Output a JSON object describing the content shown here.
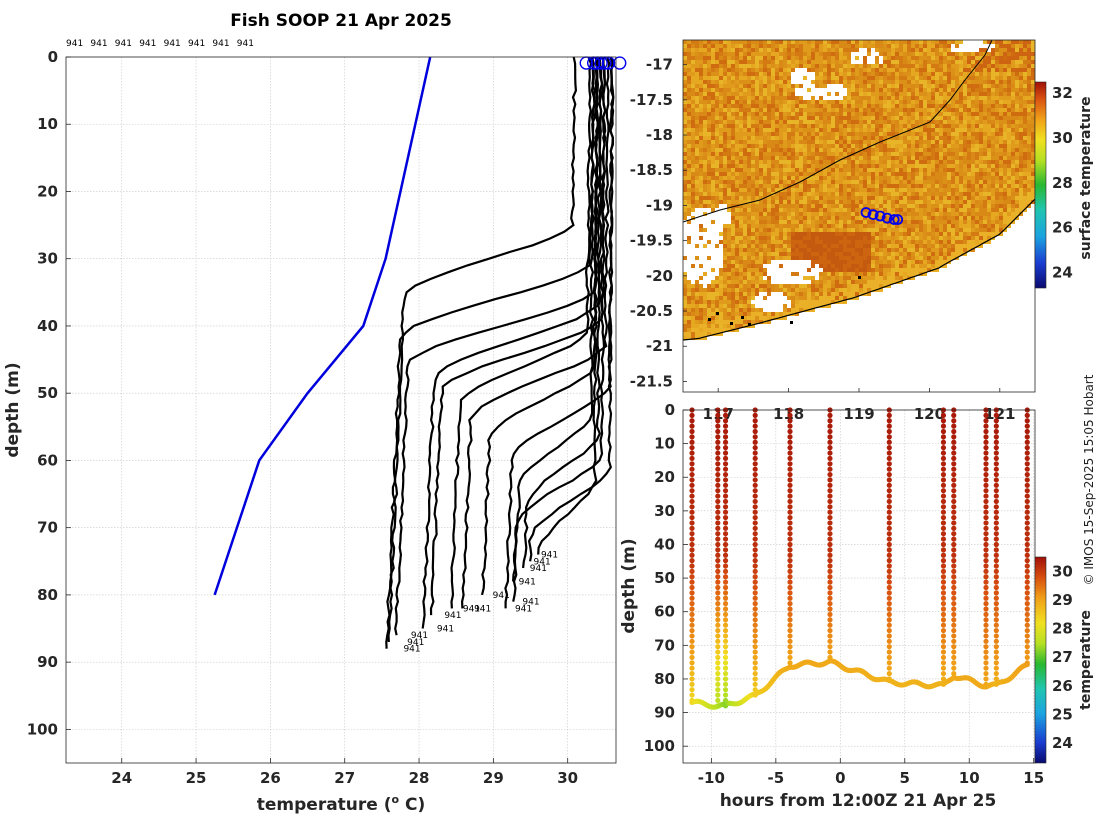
{
  "chart_data": [
    {
      "type": "line",
      "title": "Fish SOOP 21 Apr 2025",
      "xlabel": "temperature (° C)",
      "xlabel_main": "temperature (",
      "xlabel_sup": "o",
      "xlabel_end": " C)",
      "ylabel": "depth (m)",
      "xlim": [
        23.25,
        30.65
      ],
      "ylim": [
        105,
        0
      ],
      "xticks": [
        "24",
        "25",
        "26",
        "27",
        "28",
        "29",
        "30"
      ],
      "yticks": [
        "0",
        "10",
        "20",
        "30",
        "40",
        "50",
        "60",
        "70",
        "80",
        "90",
        "100"
      ],
      "header_labels": [
        "941",
        "941",
        "941",
        "941",
        "941",
        "941",
        "941",
        "941"
      ],
      "profile_tag": "941",
      "climatology": {
        "name": "climatology",
        "color": "#0000dd",
        "temperature": [
          28.15,
          27.95,
          27.75,
          27.55,
          27.25,
          26.5,
          25.85,
          25.55,
          25.25
        ],
        "depth": [
          0,
          10,
          20,
          30,
          40,
          50,
          60,
          70,
          80
        ]
      },
      "profiles": [
        {
          "surface": 30.1,
          "mld": 24,
          "bottom_temp": 27.8,
          "max_depth": 87
        },
        {
          "surface": 30.35,
          "mld": 30,
          "bottom_temp": 27.75,
          "max_depth": 88
        },
        {
          "surface": 30.4,
          "mld": 34,
          "bottom_temp": 27.85,
          "max_depth": 86
        },
        {
          "surface": 30.45,
          "mld": 36,
          "bottom_temp": 28.2,
          "max_depth": 85
        },
        {
          "surface": 30.5,
          "mld": 38,
          "bottom_temp": 28.3,
          "max_depth": 83
        },
        {
          "surface": 30.3,
          "mld": 40,
          "bottom_temp": 28.55,
          "max_depth": 82
        },
        {
          "surface": 30.55,
          "mld": 42,
          "bottom_temp": 28.7,
          "max_depth": 82
        },
        {
          "surface": 30.4,
          "mld": 45,
          "bottom_temp": 28.95,
          "max_depth": 80
        },
        {
          "surface": 30.6,
          "mld": 48,
          "bottom_temp": 29.25,
          "max_depth": 82
        },
        {
          "surface": 30.35,
          "mld": 52,
          "bottom_temp": 29.35,
          "max_depth": 81
        },
        {
          "surface": 30.45,
          "mld": 55,
          "bottom_temp": 29.45,
          "max_depth": 76
        },
        {
          "surface": 30.5,
          "mld": 58,
          "bottom_temp": 29.3,
          "max_depth": 78
        },
        {
          "surface": 30.6,
          "mld": 60,
          "bottom_temp": 29.5,
          "max_depth": 75
        },
        {
          "surface": 30.4,
          "mld": 62,
          "bottom_temp": 29.6,
          "max_depth": 74
        }
      ],
      "surface_markers": [
        30.25,
        30.35,
        30.4,
        30.45,
        30.5,
        30.55,
        30.7
      ]
    },
    {
      "type": "heatmap",
      "name": "surface temperature map",
      "xticks": [
        "117",
        "118",
        "119",
        "120",
        "121"
      ],
      "yticks": [
        "-17",
        "-17.5",
        "-18",
        "-18.5",
        "-19",
        "-19.5",
        "-20",
        "-20.5",
        "-21",
        "-21.5"
      ],
      "xlim": [
        116.5,
        121.5
      ],
      "ylim": [
        -21.65,
        -16.65
      ],
      "colorbar_label": "surface temperature",
      "colorbar_ticks": [
        "24",
        "26",
        "28",
        "30",
        "32"
      ],
      "colorbar_range": [
        23.3,
        32.5
      ],
      "track_points": [
        {
          "lon": 119.1,
          "lat": -19.1
        },
        {
          "lon": 119.2,
          "lat": -19.13
        },
        {
          "lon": 119.3,
          "lat": -19.15
        },
        {
          "lon": 119.4,
          "lat": -19.18
        },
        {
          "lon": 119.5,
          "lat": -19.2
        },
        {
          "lon": 119.55,
          "lat": -19.2
        }
      ]
    },
    {
      "type": "scatter",
      "name": "temperature section",
      "xlabel": "hours from 12:00Z 21 Apr 25",
      "ylabel": "depth (m)",
      "xticks": [
        "-10",
        "-5",
        "0",
        "5",
        "10",
        "15"
      ],
      "yticks": [
        "0",
        "10",
        "20",
        "30",
        "40",
        "50",
        "60",
        "70",
        "80",
        "90",
        "100"
      ],
      "xlim": [
        -12.2,
        15.1
      ],
      "ylim": [
        105,
        0
      ],
      "colorbar_label": "temperature",
      "colorbar_ticks": [
        "24",
        "25",
        "26",
        "27",
        "28",
        "29",
        "30"
      ],
      "colorbar_range": [
        23.3,
        30.5
      ],
      "casts": [
        {
          "hour": -11.5,
          "bottom": 87,
          "bottom_temp": 28.4
        },
        {
          "hour": -9.5,
          "bottom": 88,
          "bottom_temp": 27.6
        },
        {
          "hour": -8.9,
          "bottom": 88,
          "bottom_temp": 27.4
        },
        {
          "hour": -6.6,
          "bottom": 85,
          "bottom_temp": 28.5
        },
        {
          "hour": -3.9,
          "bottom": 76,
          "bottom_temp": 28.9
        },
        {
          "hour": -0.8,
          "bottom": 75,
          "bottom_temp": 28.9
        },
        {
          "hour": 3.8,
          "bottom": 81,
          "bottom_temp": 28.8
        },
        {
          "hour": 8.0,
          "bottom": 82,
          "bottom_temp": 28.8
        },
        {
          "hour": 8.8,
          "bottom": 79,
          "bottom_temp": 28.9
        },
        {
          "hour": 11.3,
          "bottom": 82,
          "bottom_temp": 28.9
        },
        {
          "hour": 12.1,
          "bottom": 82,
          "bottom_temp": 28.8
        },
        {
          "hour": 14.5,
          "bottom": 76,
          "bottom_temp": 29.0
        }
      ]
    }
  ],
  "credit": "© IMOS 15-Sep-2025 15:05 Hobart"
}
